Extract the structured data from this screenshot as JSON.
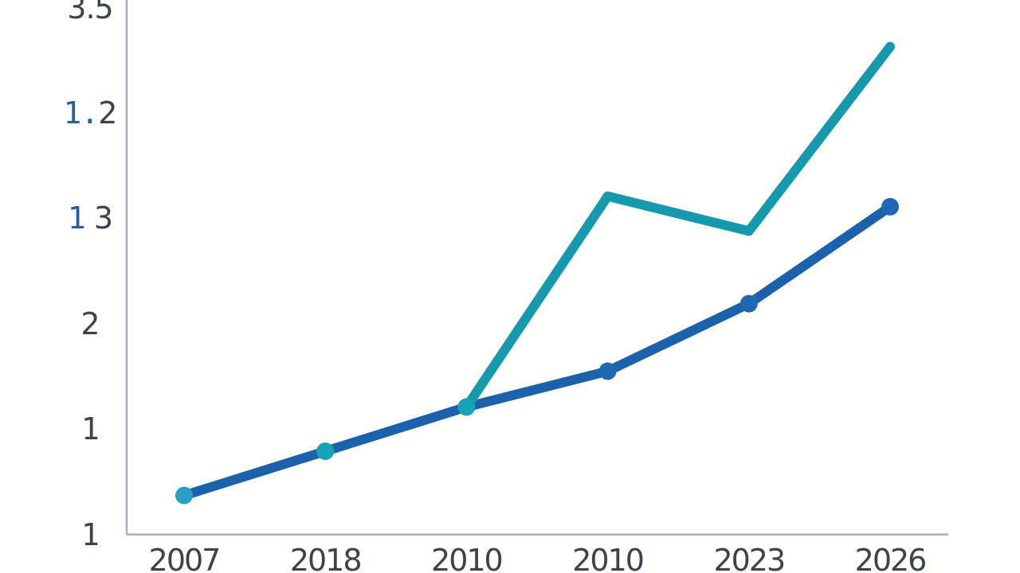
{
  "background": "#fefefd",
  "text_color": "#3d434b",
  "accent_blue_text": "#2a5f9f",
  "axis_color": "#abafb5",
  "chart_data": {
    "type": "line",
    "title": "",
    "xlabel": "",
    "ylabel": "",
    "grid": false,
    "legend": false,
    "categories": [
      "2007",
      "2018",
      "2010",
      "2010",
      "2023",
      "2026"
    ],
    "ylim": [
      0,
      5
    ],
    "y_tick_labels": [
      {
        "text": "1",
        "y_value": 0,
        "parts": [
          {
            "t": "1",
            "c": "#3d434b",
            "mono": true
          }
        ]
      },
      {
        "text": "1",
        "y_value": 1,
        "parts": [
          {
            "t": "1",
            "c": "#3d434b",
            "mono": true
          }
        ]
      },
      {
        "text": "2",
        "y_value": 2,
        "parts": [
          {
            "t": "2",
            "c": "#3d434b",
            "mono": false
          }
        ]
      },
      {
        "text": "1 3",
        "y_value": 3,
        "parts": [
          {
            "t": "1",
            "c": "#2a5f9f",
            "mono": true
          },
          {
            "t": " 3",
            "c": "#3d434b",
            "mono": false
          }
        ]
      },
      {
        "text": "1.2",
        "y_value": 4,
        "parts": [
          {
            "t": "1.",
            "c": "#2a5f9f",
            "mono": true
          },
          {
            "t": "2",
            "c": "#3d434b",
            "mono": false
          }
        ]
      },
      {
        "text": "3.5",
        "y_value": 5,
        "parts": [
          {
            "t": "3.5",
            "c": "#3d434b",
            "mono": false
          }
        ]
      }
    ],
    "series": [
      {
        "name": "blue-line",
        "color": "#1b61ab",
        "x_indices": [
          0,
          1,
          2,
          3,
          4,
          5
        ],
        "values": [
          0.37,
          0.79,
          1.21,
          1.55,
          2.19,
          3.11
        ],
        "markers": [
          {
            "i": 0,
            "color": "#2a9fc2"
          },
          {
            "i": 1,
            "color": "#18a2b6"
          },
          {
            "i": 2,
            "color": "#18a2b6"
          },
          {
            "i": 3,
            "color": "#2067b6"
          },
          {
            "i": 4,
            "color": "#2067b6"
          },
          {
            "i": 5,
            "color": "#2067b6"
          }
        ]
      },
      {
        "name": "teal-line",
        "color": "#1799ad",
        "x_indices": [
          2,
          3,
          4,
          5
        ],
        "values": [
          1.21,
          3.21,
          2.88,
          4.63
        ],
        "markers": []
      }
    ]
  }
}
